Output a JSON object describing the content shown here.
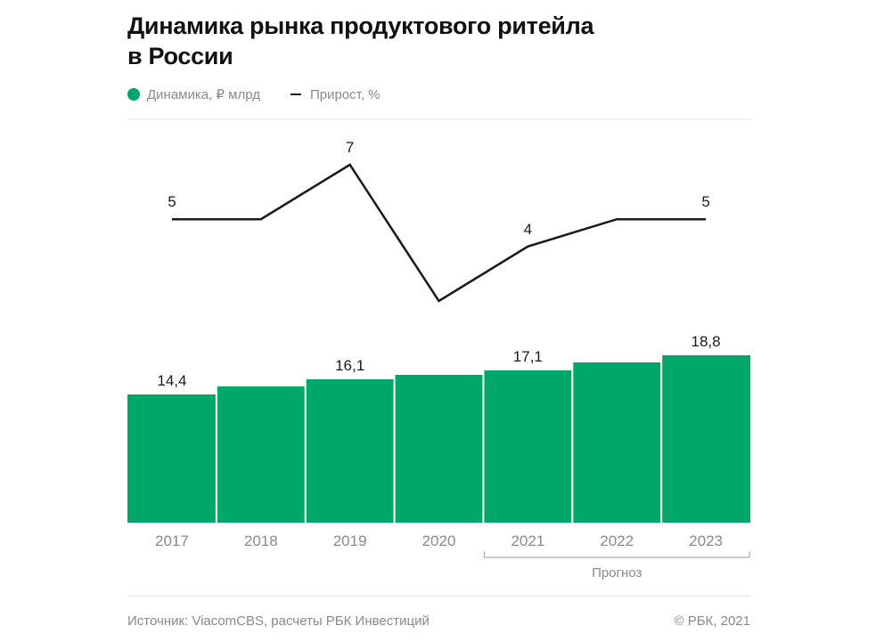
{
  "title": {
    "line1": "Динамика рынка продуктового ритейла",
    "line2": "в России"
  },
  "legend": {
    "bars_label": "Динамика, ₽ млрд",
    "line_label": "Прирост, %"
  },
  "colors": {
    "bar": "#00a76b",
    "line": "#1a1a1a",
    "grid": "#e5e5e5",
    "muted_text": "#8a8a8a"
  },
  "chart_data": {
    "type": "bar",
    "title": "Динамика рынка продуктового ритейла в России",
    "categories": [
      "2017",
      "2018",
      "2019",
      "2020",
      "2021",
      "2022",
      "2023"
    ],
    "series": [
      {
        "name": "Динамика, ₽ млрд",
        "type": "bar",
        "values": [
          14.4,
          15.3,
          16.1,
          16.6,
          17.1,
          18.0,
          18.8
        ],
        "labels": [
          "14,4",
          "",
          "16,1",
          "",
          "17,1",
          "",
          "18,8"
        ]
      },
      {
        "name": "Прирост, %",
        "type": "line",
        "values": [
          5,
          5,
          7,
          2,
          4,
          5,
          5
        ],
        "labels": [
          "5",
          "",
          "7",
          "",
          "4",
          "",
          "5"
        ]
      }
    ],
    "bar_ylim": [
      0,
      19.8
    ],
    "line_ylim": [
      2,
      7
    ],
    "forecast": {
      "label": "Прогноз",
      "from": "2021",
      "to": "2023"
    },
    "xlabel": "",
    "ylabel": ""
  },
  "footer": {
    "source": "Источник: ViacomCBS, расчеты РБК Инвестиций",
    "copyright": "© РБК, 2021"
  }
}
